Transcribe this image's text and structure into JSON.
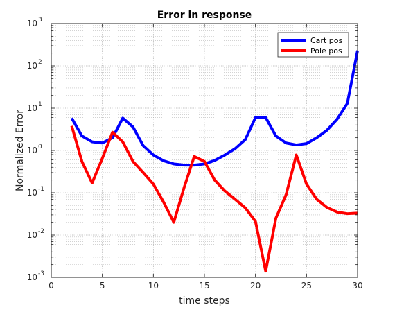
{
  "chart_data": {
    "type": "line",
    "title": "Error in response",
    "xlabel": "time steps",
    "ylabel": "Normalized Error",
    "xlim": [
      0,
      30
    ],
    "ylim": [
      0.001,
      1000
    ],
    "yscale": "log",
    "grid": true,
    "minor_grid": true,
    "legend_position": "top-right",
    "xticks": [
      "0",
      "5",
      "10",
      "15",
      "20",
      "25",
      "30"
    ],
    "yticks": [
      {
        "base": "10",
        "exp": "-3"
      },
      {
        "base": "10",
        "exp": "-2"
      },
      {
        "base": "10",
        "exp": "-1"
      },
      {
        "base": "10",
        "exp": "0"
      },
      {
        "base": "10",
        "exp": "1"
      },
      {
        "base": "10",
        "exp": "2"
      },
      {
        "base": "10",
        "exp": "3"
      }
    ],
    "x": [
      2,
      3,
      4,
      5,
      6,
      7,
      8,
      9,
      10,
      11,
      12,
      13,
      14,
      15,
      16,
      17,
      18,
      19,
      20,
      21,
      22,
      23,
      24,
      25,
      26,
      27,
      28,
      29,
      30
    ],
    "series": [
      {
        "name": "Cart pos",
        "color": "#0000ff",
        "values": [
          5.8,
          2.2,
          1.6,
          1.5,
          2.0,
          5.8,
          3.6,
          1.3,
          0.78,
          0.57,
          0.48,
          0.45,
          0.45,
          0.48,
          0.58,
          0.78,
          1.1,
          1.8,
          6.0,
          6.0,
          2.2,
          1.5,
          1.35,
          1.45,
          2.0,
          3.0,
          5.5,
          13,
          230
        ]
      },
      {
        "name": "Pole pos",
        "color": "#ff0000",
        "values": [
          3.8,
          0.55,
          0.17,
          0.65,
          2.7,
          1.6,
          0.55,
          0.3,
          0.16,
          0.06,
          0.02,
          0.13,
          0.72,
          0.55,
          0.2,
          0.11,
          0.07,
          0.044,
          0.021,
          0.0014,
          0.025,
          0.09,
          0.78,
          0.16,
          0.07,
          0.045,
          0.035,
          0.032,
          0.033
        ]
      }
    ]
  }
}
